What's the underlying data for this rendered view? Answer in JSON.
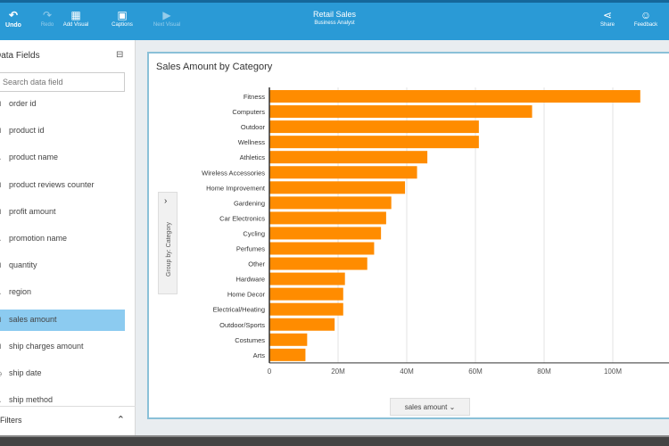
{
  "toolbar": {
    "items": [
      {
        "label": "Undo",
        "icon": "undo-icon"
      },
      {
        "label": "Redo",
        "icon": "redo-icon"
      },
      {
        "label": "Add Visual",
        "icon": "add-visual-icon"
      },
      {
        "label": "Captions",
        "icon": "captions-icon"
      },
      {
        "label": "Next Visual",
        "icon": "next-icon"
      }
    ],
    "title": "Retail Sales",
    "subtitle": "Business Analyst",
    "share": "Share",
    "feedback": "Feedback"
  },
  "sidebar": {
    "title": "Data Fields",
    "search_placeholder": "Search data field",
    "fields": [
      {
        "label": "order id",
        "type": "numeric"
      },
      {
        "label": "product id",
        "type": "numeric"
      },
      {
        "label": "product name",
        "type": "text"
      },
      {
        "label": "product reviews counter",
        "type": "numeric"
      },
      {
        "label": "profit amount",
        "type": "numeric"
      },
      {
        "label": "promotion name",
        "type": "text"
      },
      {
        "label": "quantity",
        "type": "numeric"
      },
      {
        "label": "region",
        "type": "text"
      },
      {
        "label": "sales amount",
        "type": "numeric",
        "selected": true
      },
      {
        "label": "ship charges amount",
        "type": "numeric"
      },
      {
        "label": "ship date",
        "type": "date"
      },
      {
        "label": "ship method",
        "type": "text"
      }
    ],
    "filters_label": "Filters"
  },
  "chart_data": {
    "type": "bar",
    "orientation": "horizontal",
    "title": "Sales Amount by Category",
    "group_by_label": "Group by: Category",
    "measure_label": "sales amount",
    "categories": [
      "Fitness",
      "Computers",
      "Outdoor",
      "Wellness",
      "Athletics",
      "Wireless Accessories",
      "Home Improvement",
      "Gardening",
      "Car Electronics",
      "Cycling",
      "Perfumes",
      "Other",
      "Hardware",
      "Home Decor",
      "Electrical/Heating",
      "Outdoor/Sports",
      "Costumes",
      "Arts"
    ],
    "values": [
      108,
      76.5,
      61,
      61,
      46,
      43,
      39.5,
      35.5,
      34,
      32.5,
      30.5,
      28.5,
      22,
      21.5,
      21.5,
      19,
      11,
      10.5
    ],
    "unit": "M",
    "xlim": [
      0,
      120
    ],
    "ticks": [
      "0",
      "20M",
      "40M",
      "60M",
      "80M",
      "100M"
    ],
    "color": "#ff8c00",
    "grid": true
  }
}
